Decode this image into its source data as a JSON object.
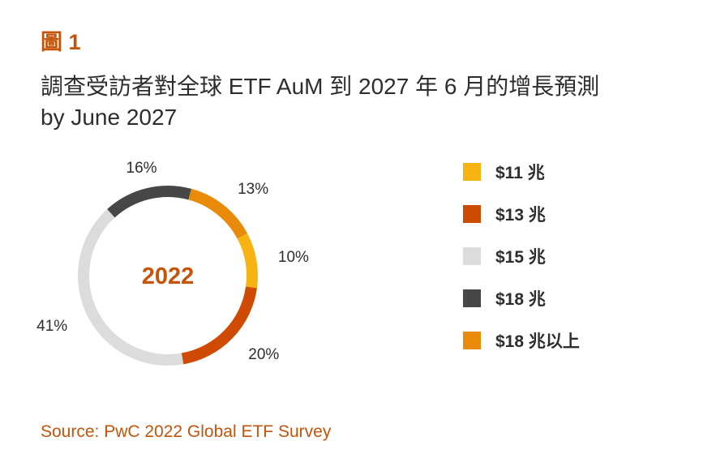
{
  "figure_label": "圖 1",
  "title_line1": "調查受訪者對全球 ETF AuM 到 2027 年 6 月的增長預測",
  "title_line2": "by June 2027",
  "source": "Source: PwC 2022 Global ETF Survey",
  "colors": {
    "accent": "#c45409",
    "text": "#2d2d2d"
  },
  "chart_data": {
    "type": "pie",
    "variant": "donut",
    "center_label": "2022",
    "slices": [
      {
        "label": "$11 兆",
        "value": 10,
        "value_label": "10%",
        "color": "#f7b312"
      },
      {
        "label": "$13 兆",
        "value": 20,
        "value_label": "20%",
        "color": "#cf4a02"
      },
      {
        "label": "$15 兆",
        "value": 41,
        "value_label": "41%",
        "color": "#dcdcdc"
      },
      {
        "label": "$18 兆",
        "value": 16,
        "value_label": "16%",
        "color": "#474747"
      },
      {
        "label": "$18 兆以上",
        "value": 13,
        "value_label": "13%",
        "color": "#ea8a0a"
      }
    ],
    "legend_position": "right",
    "legend": [
      {
        "label": "$11 兆",
        "color": "#f7b312"
      },
      {
        "label": "$13 兆",
        "color": "#cf4a02"
      },
      {
        "label": "$15 兆",
        "color": "#dcdcdc"
      },
      {
        "label": "$18 兆",
        "color": "#474747"
      },
      {
        "label": "$18 兆以上",
        "color": "#ea8a0a"
      }
    ]
  }
}
